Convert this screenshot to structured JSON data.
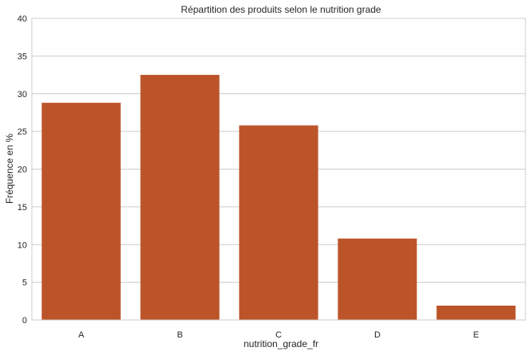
{
  "chart_data": {
    "type": "bar",
    "title": "Répartition des produits selon le nutrition grade",
    "xlabel": "nutrition_grade_fr",
    "ylabel": "Fréquence en %",
    "categories": [
      "A",
      "B",
      "C",
      "D",
      "E"
    ],
    "values": [
      28.8,
      32.5,
      25.8,
      10.8,
      1.9
    ],
    "ylim": [
      0,
      40
    ],
    "yticks": [
      0,
      5,
      10,
      15,
      20,
      25,
      30,
      35,
      40
    ],
    "grid": true,
    "legend": "none",
    "bar_color": "#bc5429",
    "grid_color": "#cccccc"
  }
}
